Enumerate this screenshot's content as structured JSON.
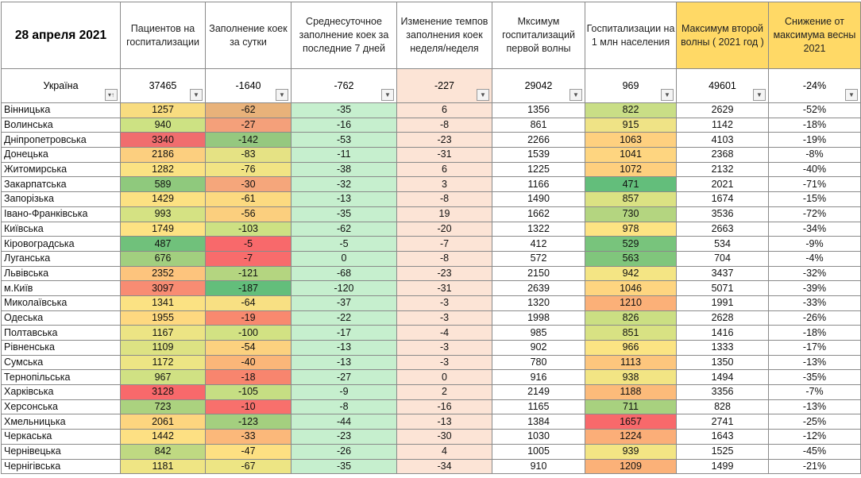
{
  "date_label": "28 апреля 2021",
  "headers": [
    "Пациентов на госпитализации",
    "Заполнение коек за сутки",
    "Среднесуточное заполнение коек за последние 7 дней",
    "Изменение темпов заполнения коек неделя/неделя",
    "Мксимум госпитализаций первой волны",
    "Госпитализации на 1 млн населения",
    "Максимум второй волны ( 2021 год )",
    "Снижение от максимума весны 2021"
  ],
  "total": {
    "name": "Україна",
    "values": [
      "37465",
      "-1640",
      "-762",
      "-227",
      "29042",
      "969",
      "49601",
      "-24%"
    ]
  },
  "filter_icon": "dropdown-arrow",
  "sort_icon": "sort-filter",
  "rows": [
    {
      "name": "Вінницька",
      "values": [
        "1257",
        "-62",
        "-35",
        "6",
        "1356",
        "822",
        "2629",
        "-52%"
      ],
      "colors": {
        "patients": "#f8dc80",
        "fill": "#e8b27a",
        "per_million": "#c9de86"
      }
    },
    {
      "name": "Волинська",
      "values": [
        "940",
        "-27",
        "-16",
        "-8",
        "861",
        "915",
        "1142",
        "-18%"
      ],
      "colors": {
        "patients": "#cde283",
        "fill": "#f4a07a",
        "per_million": "#efe386"
      }
    },
    {
      "name": "Дніпропетровська",
      "values": [
        "3340",
        "-142",
        "-53",
        "-23",
        "2266",
        "1063",
        "4103",
        "-19%"
      ],
      "colors": {
        "patients": "#f06d6e",
        "fill": "#95c87f",
        "per_million": "#fed07f"
      }
    },
    {
      "name": "Донецька",
      "values": [
        "2186",
        "-83",
        "-11",
        "-31",
        "1539",
        "1041",
        "2368",
        "-8%"
      ],
      "colors": {
        "patients": "#fccf7f",
        "fill": "#e5e284",
        "per_million": "#fed580"
      }
    },
    {
      "name": "Житомирська",
      "values": [
        "1282",
        "-76",
        "-38",
        "6",
        "1225",
        "1072",
        "2132",
        "-40%"
      ],
      "colors": {
        "patients": "#fbe283",
        "fill": "#f1e484",
        "per_million": "#fecf7e"
      }
    },
    {
      "name": "Закарпатська",
      "values": [
        "589",
        "-30",
        "-32",
        "3",
        "1166",
        "471",
        "2021",
        "-71%"
      ],
      "colors": {
        "patients": "#8fc97d",
        "fill": "#f5a67b",
        "per_million": "#63be7b"
      }
    },
    {
      "name": "Запорізька",
      "values": [
        "1429",
        "-61",
        "-13",
        "-8",
        "1490",
        "857",
        "1674",
        "-15%"
      ],
      "colors": {
        "patients": "#fce182",
        "fill": "#fcda80",
        "per_million": "#dbe283"
      }
    },
    {
      "name": "Івано-Франківська",
      "values": [
        "993",
        "-56",
        "-35",
        "19",
        "1662",
        "730",
        "3536",
        "-72%"
      ],
      "colors": {
        "patients": "#d5e283",
        "fill": "#fbcf7e",
        "per_million": "#b4d580"
      }
    },
    {
      "name": "Київська",
      "values": [
        "1749",
        "-103",
        "-62",
        "-20",
        "1322",
        "978",
        "2663",
        "-34%"
      ],
      "colors": {
        "patients": "#fde283",
        "fill": "#cde183",
        "per_million": "#fde383"
      }
    },
    {
      "name": "Кіровоградська",
      "values": [
        "487",
        "-5",
        "-5",
        "-7",
        "412",
        "529",
        "534",
        "-9%"
      ],
      "colors": {
        "patients": "#70c17b",
        "fill": "#f8696b",
        "per_million": "#78c47c"
      }
    },
    {
      "name": "Луганська",
      "values": [
        "676",
        "-7",
        "0",
        "-8",
        "572",
        "563",
        "704",
        "-4%"
      ],
      "colors": {
        "patients": "#a2cf7f",
        "fill": "#f86c6c",
        "per_million": "#80c67c"
      }
    },
    {
      "name": "Львівська",
      "values": [
        "2352",
        "-121",
        "-68",
        "-23",
        "2150",
        "942",
        "3437",
        "-32%"
      ],
      "colors": {
        "patients": "#fdc47d",
        "fill": "#b4d580",
        "per_million": "#f4e584"
      }
    },
    {
      "name": "м.Київ",
      "values": [
        "3097",
        "-187",
        "-120",
        "-31",
        "2639",
        "1046",
        "5071",
        "-39%"
      ],
      "colors": {
        "patients": "#f88c73",
        "fill": "#63be7b",
        "per_million": "#fed580"
      }
    },
    {
      "name": "Миколаївська",
      "values": [
        "1341",
        "-64",
        "-37",
        "-3",
        "1320",
        "1210",
        "1991",
        "-33%"
      ],
      "colors": {
        "patients": "#fbe283",
        "fill": "#f8e083",
        "per_million": "#fbb078"
      }
    },
    {
      "name": "Одеська",
      "values": [
        "1955",
        "-19",
        "-22",
        "-3",
        "1998",
        "826",
        "2628",
        "-26%"
      ],
      "colors": {
        "patients": "#fed880",
        "fill": "#f8896f",
        "per_million": "#cbdf83"
      }
    },
    {
      "name": "Полтавська",
      "values": [
        "1167",
        "-100",
        "-17",
        "-4",
        "985",
        "851",
        "1416",
        "-18%"
      ],
      "colors": {
        "patients": "#ece484",
        "fill": "#d2e283",
        "per_million": "#d8e283"
      }
    },
    {
      "name": "Рівненська",
      "values": [
        "1109",
        "-54",
        "-13",
        "-3",
        "902",
        "966",
        "1333",
        "-17%"
      ],
      "colors": {
        "patients": "#dde283",
        "fill": "#fcd17f",
        "per_million": "#fbe483"
      }
    },
    {
      "name": "Сумська",
      "values": [
        "1172",
        "-40",
        "-13",
        "-3",
        "780",
        "1113",
        "1350",
        "-13%"
      ],
      "colors": {
        "patients": "#ede584",
        "fill": "#fbb679",
        "per_million": "#fdc67d"
      }
    },
    {
      "name": "Тернопільська",
      "values": [
        "967",
        "-18",
        "-27",
        "0",
        "916",
        "938",
        "1494",
        "-35%"
      ],
      "colors": {
        "patients": "#d0e183",
        "fill": "#f8856e",
        "per_million": "#f2e584"
      }
    },
    {
      "name": "Харківська",
      "values": [
        "3128",
        "-105",
        "-9",
        "2",
        "2149",
        "1188",
        "3356",
        "-7%"
      ],
      "colors": {
        "patients": "#f8696b",
        "fill": "#c6de83",
        "per_million": "#fcbb7a"
      }
    },
    {
      "name": "Херсонська",
      "values": [
        "723",
        "-10",
        "-8",
        "-16",
        "1165",
        "711",
        "828",
        "-13%"
      ],
      "colors": {
        "patients": "#abd27f",
        "fill": "#f8706c",
        "per_million": "#a8d17f"
      }
    },
    {
      "name": "Хмельницька",
      "values": [
        "2061",
        "-123",
        "-44",
        "-13",
        "1384",
        "1657",
        "2741",
        "-25%"
      ],
      "colors": {
        "patients": "#fdd57f",
        "fill": "#a4cf7f",
        "per_million": "#f8696b"
      }
    },
    {
      "name": "Черкаська",
      "values": [
        "1442",
        "-33",
        "-23",
        "-30",
        "1030",
        "1224",
        "1643",
        "-12%"
      ],
      "colors": {
        "patients": "#fde083",
        "fill": "#fbb87a",
        "per_million": "#fbae78"
      }
    },
    {
      "name": "Чернівецька",
      "values": [
        "842",
        "-47",
        "-26",
        "4",
        "1005",
        "939",
        "1525",
        "-45%"
      ],
      "colors": {
        "patients": "#bfd982",
        "fill": "#fde082",
        "per_million": "#f3e584"
      }
    },
    {
      "name": "Чернігівська",
      "values": [
        "1181",
        "-67",
        "-35",
        "-34",
        "910",
        "1209",
        "1499",
        "-21%"
      ],
      "colors": {
        "patients": "#efe584",
        "fill": "#ede584",
        "per_million": "#fbb178"
      }
    }
  ]
}
